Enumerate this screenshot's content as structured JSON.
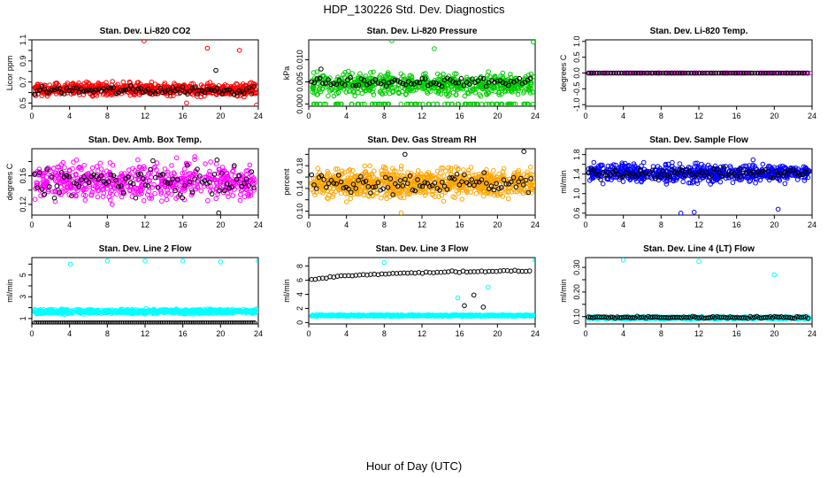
{
  "figure": {
    "title": "HDP_130226  Std. Dev. Diagnostics",
    "xlabel": "Hour of Day (UTC)"
  },
  "chart_data": [
    {
      "type": "scatter",
      "title": "Stan. Dev. Li-820 CO2",
      "ylabel": "Licor ppm",
      "xlim": [
        0,
        24
      ],
      "ylim": [
        0.47,
        1.1
      ],
      "xticks": [
        0,
        4,
        8,
        12,
        16,
        20,
        24
      ],
      "yticks": [
        0.5,
        0.6,
        0.7,
        0.8,
        0.9,
        1.0,
        1.1
      ],
      "ytick_labels": [
        "0.5",
        "",
        "0.7",
        "",
        "0.9",
        "",
        "1.1"
      ],
      "colors": {
        "line_A": "#ff0000",
        "line_B": "#000000"
      },
      "gen": {
        "a": {
          "base": 0.63,
          "spread": 0.07,
          "n": 700,
          "color": "#ff0000"
        },
        "b": {
          "base": 0.62,
          "spread": 0.05,
          "n": 90,
          "color": "#000000"
        }
      },
      "outliers": [
        {
          "x": 11.9,
          "y": 1.09,
          "color": "#ff0000"
        },
        {
          "x": 18.6,
          "y": 1.02,
          "color": "#ff0000"
        },
        {
          "x": 22.0,
          "y": 1.0,
          "color": "#ff0000"
        },
        {
          "x": 19.5,
          "y": 0.81,
          "color": "#000000"
        },
        {
          "x": 16.4,
          "y": 0.5,
          "color": "#ff0000"
        },
        {
          "x": 23.8,
          "y": 0.48,
          "color": "#ff0000"
        }
      ]
    },
    {
      "type": "scatter",
      "title": "Stan. Dev. Li-820 Pressure",
      "ylabel": "kPa",
      "xlim": [
        0,
        24
      ],
      "ylim": [
        -0.0005,
        0.0145
      ],
      "xticks": [
        0,
        4,
        8,
        12,
        16,
        20,
        24
      ],
      "yticks": [
        0.0,
        0.005,
        0.01
      ],
      "ytick_labels": [
        "0.000",
        "0.005",
        "0.010"
      ],
      "gen": {
        "a": {
          "base": 0.0045,
          "spread": 0.0028,
          "n": 750,
          "color": "#00cc00",
          "floor": 0.0
        },
        "b": {
          "base": 0.005,
          "spread": 0.0012,
          "n": 80,
          "color": "#000000"
        }
      },
      "outliers": [
        {
          "x": 8.8,
          "y": 0.0143,
          "color": "#00cc00"
        },
        {
          "x": 13.3,
          "y": 0.0125,
          "color": "#00cc00"
        },
        {
          "x": 23.8,
          "y": 0.014,
          "color": "#00cc00"
        },
        {
          "x": 1.3,
          "y": 0.0079,
          "color": "#000000"
        }
      ]
    },
    {
      "type": "scatter",
      "title": "Stan. Dev. Li-820 Temp.",
      "ylabel": "degrees C",
      "xlim": [
        0,
        24
      ],
      "ylim": [
        -1.05,
        1.05
      ],
      "xticks": [
        0,
        4,
        8,
        12,
        16,
        20,
        24
      ],
      "yticks": [
        -1.0,
        -0.5,
        0.0,
        0.5,
        1.0
      ],
      "ytick_labels": [
        "-1.0",
        "-0.5",
        "0.0",
        "0.5",
        "1.0"
      ],
      "gen": {
        "a": {
          "base": 0.0,
          "spread": 0.0,
          "n": 160,
          "color": "#ff00ff"
        },
        "b": {
          "base": 0.0,
          "spread": 0.0,
          "n": 80,
          "color": "#000000"
        }
      },
      "outliers": []
    },
    {
      "type": "scatter",
      "title": "Stan. Dev. Amb. Box Temp.",
      "ylabel": "degrees C",
      "xlim": [
        0,
        24
      ],
      "ylim": [
        0.105,
        0.198
      ],
      "xticks": [
        0,
        4,
        8,
        12,
        16,
        20,
        24
      ],
      "yticks": [
        0.12,
        0.14,
        0.16,
        0.18
      ],
      "ytick_labels": [
        "0.12",
        "",
        "0.16",
        ""
      ],
      "gen": {
        "a": {
          "base": 0.152,
          "spread": 0.03,
          "n": 600,
          "color": "#ff00ff"
        },
        "b": {
          "base": 0.152,
          "spread": 0.025,
          "n": 90,
          "color": "#000000"
        }
      },
      "outliers": [
        {
          "x": 19.8,
          "y": 0.108,
          "color": "#000000"
        }
      ]
    },
    {
      "type": "scatter",
      "title": "Stan. Dev. Gas Stream RH",
      "ylabel": "percent",
      "xlim": [
        0,
        24
      ],
      "ylim": [
        0.093,
        0.21
      ],
      "xticks": [
        0,
        4,
        8,
        12,
        16,
        20,
        24
      ],
      "yticks": [
        0.1,
        0.12,
        0.14,
        0.16,
        0.18,
        0.2
      ],
      "ytick_labels": [
        "0.10",
        "",
        "0.14",
        "",
        "0.18",
        ""
      ],
      "gen": {
        "a": {
          "base": 0.15,
          "spread": 0.03,
          "n": 800,
          "color": "#ffa500"
        },
        "b": {
          "base": 0.15,
          "spread": 0.022,
          "n": 90,
          "color": "#000000"
        }
      },
      "outliers": [
        {
          "x": 22.8,
          "y": 0.205,
          "color": "#000000"
        },
        {
          "x": 10.2,
          "y": 0.2,
          "color": "#000000"
        },
        {
          "x": 9.8,
          "y": 0.097,
          "color": "#ffa500"
        }
      ]
    },
    {
      "type": "scatter",
      "title": "Stan. Dev. Sample Flow",
      "ylabel": "ml/min",
      "xlim": [
        0,
        24
      ],
      "ylim": [
        0.56,
        1.92
      ],
      "xticks": [
        0,
        4,
        8,
        12,
        16,
        20,
        24
      ],
      "yticks": [
        0.6,
        0.8,
        1.0,
        1.2,
        1.4,
        1.6,
        1.8
      ],
      "ytick_labels": [
        "0.6",
        "",
        "1.0",
        "",
        "1.4",
        "",
        "1.8"
      ],
      "gen": {
        "a": {
          "base": 1.42,
          "spread": 0.22,
          "n": 700,
          "color": "#0000ff"
        },
        "b": {
          "base": 1.42,
          "spread": 0.12,
          "n": 90,
          "color": "#000000"
        }
      },
      "outliers": [
        {
          "x": 10.1,
          "y": 0.6,
          "color": "#0000ff"
        },
        {
          "x": 11.5,
          "y": 0.62,
          "color": "#0000ff"
        },
        {
          "x": 20.4,
          "y": 0.68,
          "color": "#0000ff"
        }
      ]
    },
    {
      "type": "scatter",
      "title": "Stan. Dev. Line 2 Flow",
      "ylabel": "ml/min",
      "xlim": [
        0,
        24
      ],
      "ylim": [
        0.5,
        6.6
      ],
      "xticks": [
        0,
        4,
        8,
        12,
        16,
        20,
        24
      ],
      "yticks": [
        1,
        2,
        3,
        4,
        5,
        6
      ],
      "ytick_labels": [
        "1",
        "",
        "3",
        "",
        "5",
        ""
      ],
      "gen": {
        "a": {
          "base": 1.65,
          "spread": 0.25,
          "n": 700,
          "color": "#00ffff"
        },
        "b": {
          "base": 0.6,
          "spread": 0.0,
          "n": 120,
          "color": "#000000"
        }
      },
      "outliers": [
        {
          "x": 4.1,
          "y": 6.0,
          "color": "#00ffff"
        },
        {
          "x": 8.0,
          "y": 6.3,
          "color": "#00ffff"
        },
        {
          "x": 12.0,
          "y": 6.3,
          "color": "#00ffff"
        },
        {
          "x": 16.0,
          "y": 6.3,
          "color": "#00ffff"
        },
        {
          "x": 20.0,
          "y": 6.2,
          "color": "#00ffff"
        },
        {
          "x": 24.0,
          "y": 6.3,
          "color": "#00ffff"
        }
      ]
    },
    {
      "type": "scatter",
      "title": "Stan. Dev. Line 3 Flow",
      "ylabel": "ml/min",
      "xlim": [
        0,
        24
      ],
      "ylim": [
        -0.2,
        9.2
      ],
      "xticks": [
        0,
        4,
        8,
        12,
        16,
        20,
        24
      ],
      "yticks": [
        0,
        2,
        4,
        6,
        8
      ],
      "ytick_labels": [
        "0",
        "2",
        "4",
        "6",
        "8"
      ],
      "gen": {
        "a": {
          "base": 1.0,
          "spread": 0.12,
          "n": 700,
          "color": "#00ffff"
        },
        "b": {
          "base": 6.8,
          "spread": 0.0,
          "n": 60,
          "color": "#000000"
        }
      },
      "outliers": [
        {
          "x": 15.8,
          "y": 3.5,
          "color": "#00ffff"
        },
        {
          "x": 16.5,
          "y": 2.4,
          "color": "#000000"
        },
        {
          "x": 17.5,
          "y": 3.9,
          "color": "#000000"
        },
        {
          "x": 18.5,
          "y": 2.2,
          "color": "#000000"
        },
        {
          "x": 19.0,
          "y": 5.0,
          "color": "#00ffff"
        },
        {
          "x": 24.0,
          "y": 8.8,
          "color": "#00ffff"
        },
        {
          "x": 8.0,
          "y": 8.5,
          "color": "#00ffff"
        }
      ]
    },
    {
      "type": "scatter",
      "title": "Stan. Dev. Line 4 (LT) Flow",
      "ylabel": "ml/min",
      "xlim": [
        0,
        24
      ],
      "ylim": [
        0.07,
        0.34
      ],
      "xticks": [
        0,
        4,
        8,
        12,
        16,
        20,
        24
      ],
      "yticks": [
        0.1,
        0.15,
        0.2,
        0.25,
        0.3
      ],
      "ytick_labels": [
        "0.10",
        "",
        "0.20",
        "",
        "0.30"
      ],
      "gen": {
        "a": {
          "base": 0.095,
          "spread": 0.006,
          "n": 500,
          "color": "#00ffff"
        },
        "b": {
          "base": 0.097,
          "spread": 0.005,
          "n": 100,
          "color": "#000000"
        }
      },
      "outliers": [
        {
          "x": 4.0,
          "y": 0.33,
          "color": "#00ffff"
        },
        {
          "x": 12.0,
          "y": 0.325,
          "color": "#00ffff"
        },
        {
          "x": 20.0,
          "y": 0.27,
          "color": "#00ffff"
        }
      ]
    }
  ]
}
